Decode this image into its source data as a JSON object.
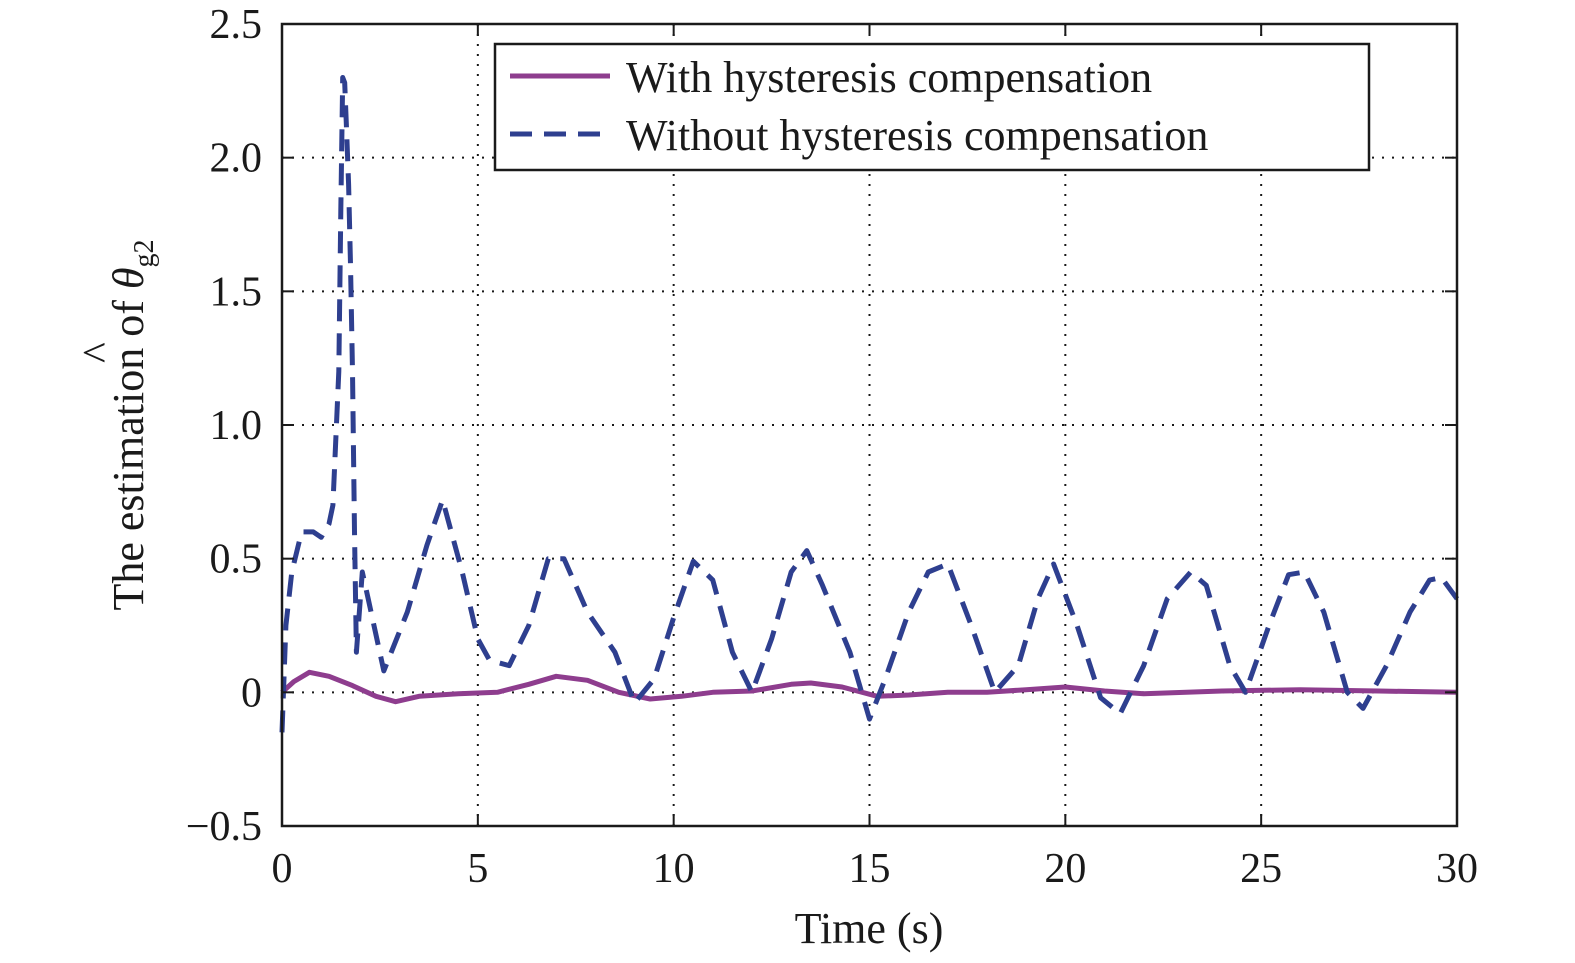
{
  "chart_data": {
    "type": "line",
    "xlabel": "Time (s)",
    "ylabel": {
      "prefix": "The estimation of ",
      "symbol": "θ",
      "hat": "^",
      "subscript": "g2"
    },
    "xlim": [
      0,
      30
    ],
    "ylim": [
      -0.5,
      2.5
    ],
    "xticks": [
      0,
      5,
      10,
      15,
      20,
      25,
      30
    ],
    "xtick_labels": [
      "0",
      "5",
      "10",
      "15",
      "20",
      "25",
      "30"
    ],
    "yticks": [
      -0.5,
      0,
      0.5,
      1.0,
      1.5,
      2.0,
      2.5
    ],
    "ytick_labels": [
      "−0.5",
      "0",
      "0.5",
      "1.0",
      "1.5",
      "2.0",
      "2.5"
    ],
    "grid": true,
    "legend_position": "top-right",
    "series": [
      {
        "name": "With hysteresis compensation",
        "color": "#8e3d8e",
        "style": "solid",
        "x": [
          0,
          0.3,
          0.7,
          1.2,
          1.8,
          2.4,
          2.9,
          3.5,
          4.5,
          5.5,
          6.3,
          7.0,
          7.8,
          8.6,
          9.4,
          10.2,
          11.0,
          12.0,
          13.0,
          13.5,
          14.3,
          15.2,
          16.0,
          17.0,
          18.0,
          19.0,
          20.0,
          21.0,
          22.0,
          24.0,
          26.0,
          28.0,
          30.0
        ],
        "y": [
          0.0,
          0.04,
          0.075,
          0.06,
          0.025,
          -0.015,
          -0.035,
          -0.015,
          -0.005,
          0.0,
          0.03,
          0.06,
          0.045,
          0.0,
          -0.025,
          -0.015,
          0.0,
          0.005,
          0.03,
          0.035,
          0.02,
          -0.015,
          -0.01,
          0.0,
          0.0,
          0.01,
          0.02,
          0.005,
          -0.005,
          0.005,
          0.01,
          0.005,
          0.0
        ]
      },
      {
        "name": "Without hysteresis compensation",
        "color": "#2e3f8f",
        "style": "dashed",
        "x": [
          0,
          0.1,
          0.25,
          0.5,
          0.8,
          1.0,
          1.2,
          1.3,
          1.45,
          1.5,
          1.55,
          1.6,
          1.65,
          1.7,
          1.75,
          1.8,
          1.85,
          1.9,
          2.05,
          2.2,
          2.6,
          3.2,
          3.7,
          4.1,
          4.6,
          5.0,
          5.3,
          5.8,
          6.3,
          6.8,
          7.2,
          7.8,
          8.5,
          9.0,
          9.5,
          10.0,
          10.5,
          11.0,
          11.5,
          12.0,
          12.5,
          13.0,
          13.4,
          13.8,
          14.5,
          15.0,
          15.4,
          16.0,
          16.5,
          17.0,
          17.6,
          18.2,
          18.8,
          19.3,
          19.7,
          20.3,
          20.9,
          21.4,
          22.0,
          22.6,
          23.2,
          23.6,
          24.2,
          24.6,
          25.2,
          25.7,
          26.1,
          26.6,
          27.2,
          27.6,
          28.2,
          28.8,
          29.3,
          29.6,
          30.0
        ],
        "y": [
          -0.15,
          0.25,
          0.45,
          0.6,
          0.6,
          0.58,
          0.63,
          0.7,
          1.2,
          1.8,
          2.3,
          2.28,
          2.1,
          1.9,
          1.6,
          1.2,
          0.6,
          0.15,
          0.45,
          0.35,
          0.08,
          0.3,
          0.55,
          0.72,
          0.45,
          0.2,
          0.12,
          0.1,
          0.25,
          0.5,
          0.5,
          0.3,
          0.15,
          -0.04,
          0.05,
          0.28,
          0.49,
          0.42,
          0.15,
          0.0,
          0.2,
          0.45,
          0.53,
          0.4,
          0.15,
          -0.1,
          0.05,
          0.3,
          0.45,
          0.48,
          0.25,
          0.0,
          0.1,
          0.35,
          0.48,
          0.25,
          -0.02,
          -0.08,
          0.1,
          0.35,
          0.45,
          0.4,
          0.1,
          0.0,
          0.25,
          0.44,
          0.45,
          0.3,
          0.0,
          -0.06,
          0.1,
          0.3,
          0.42,
          0.43,
          0.35
        ]
      }
    ]
  }
}
